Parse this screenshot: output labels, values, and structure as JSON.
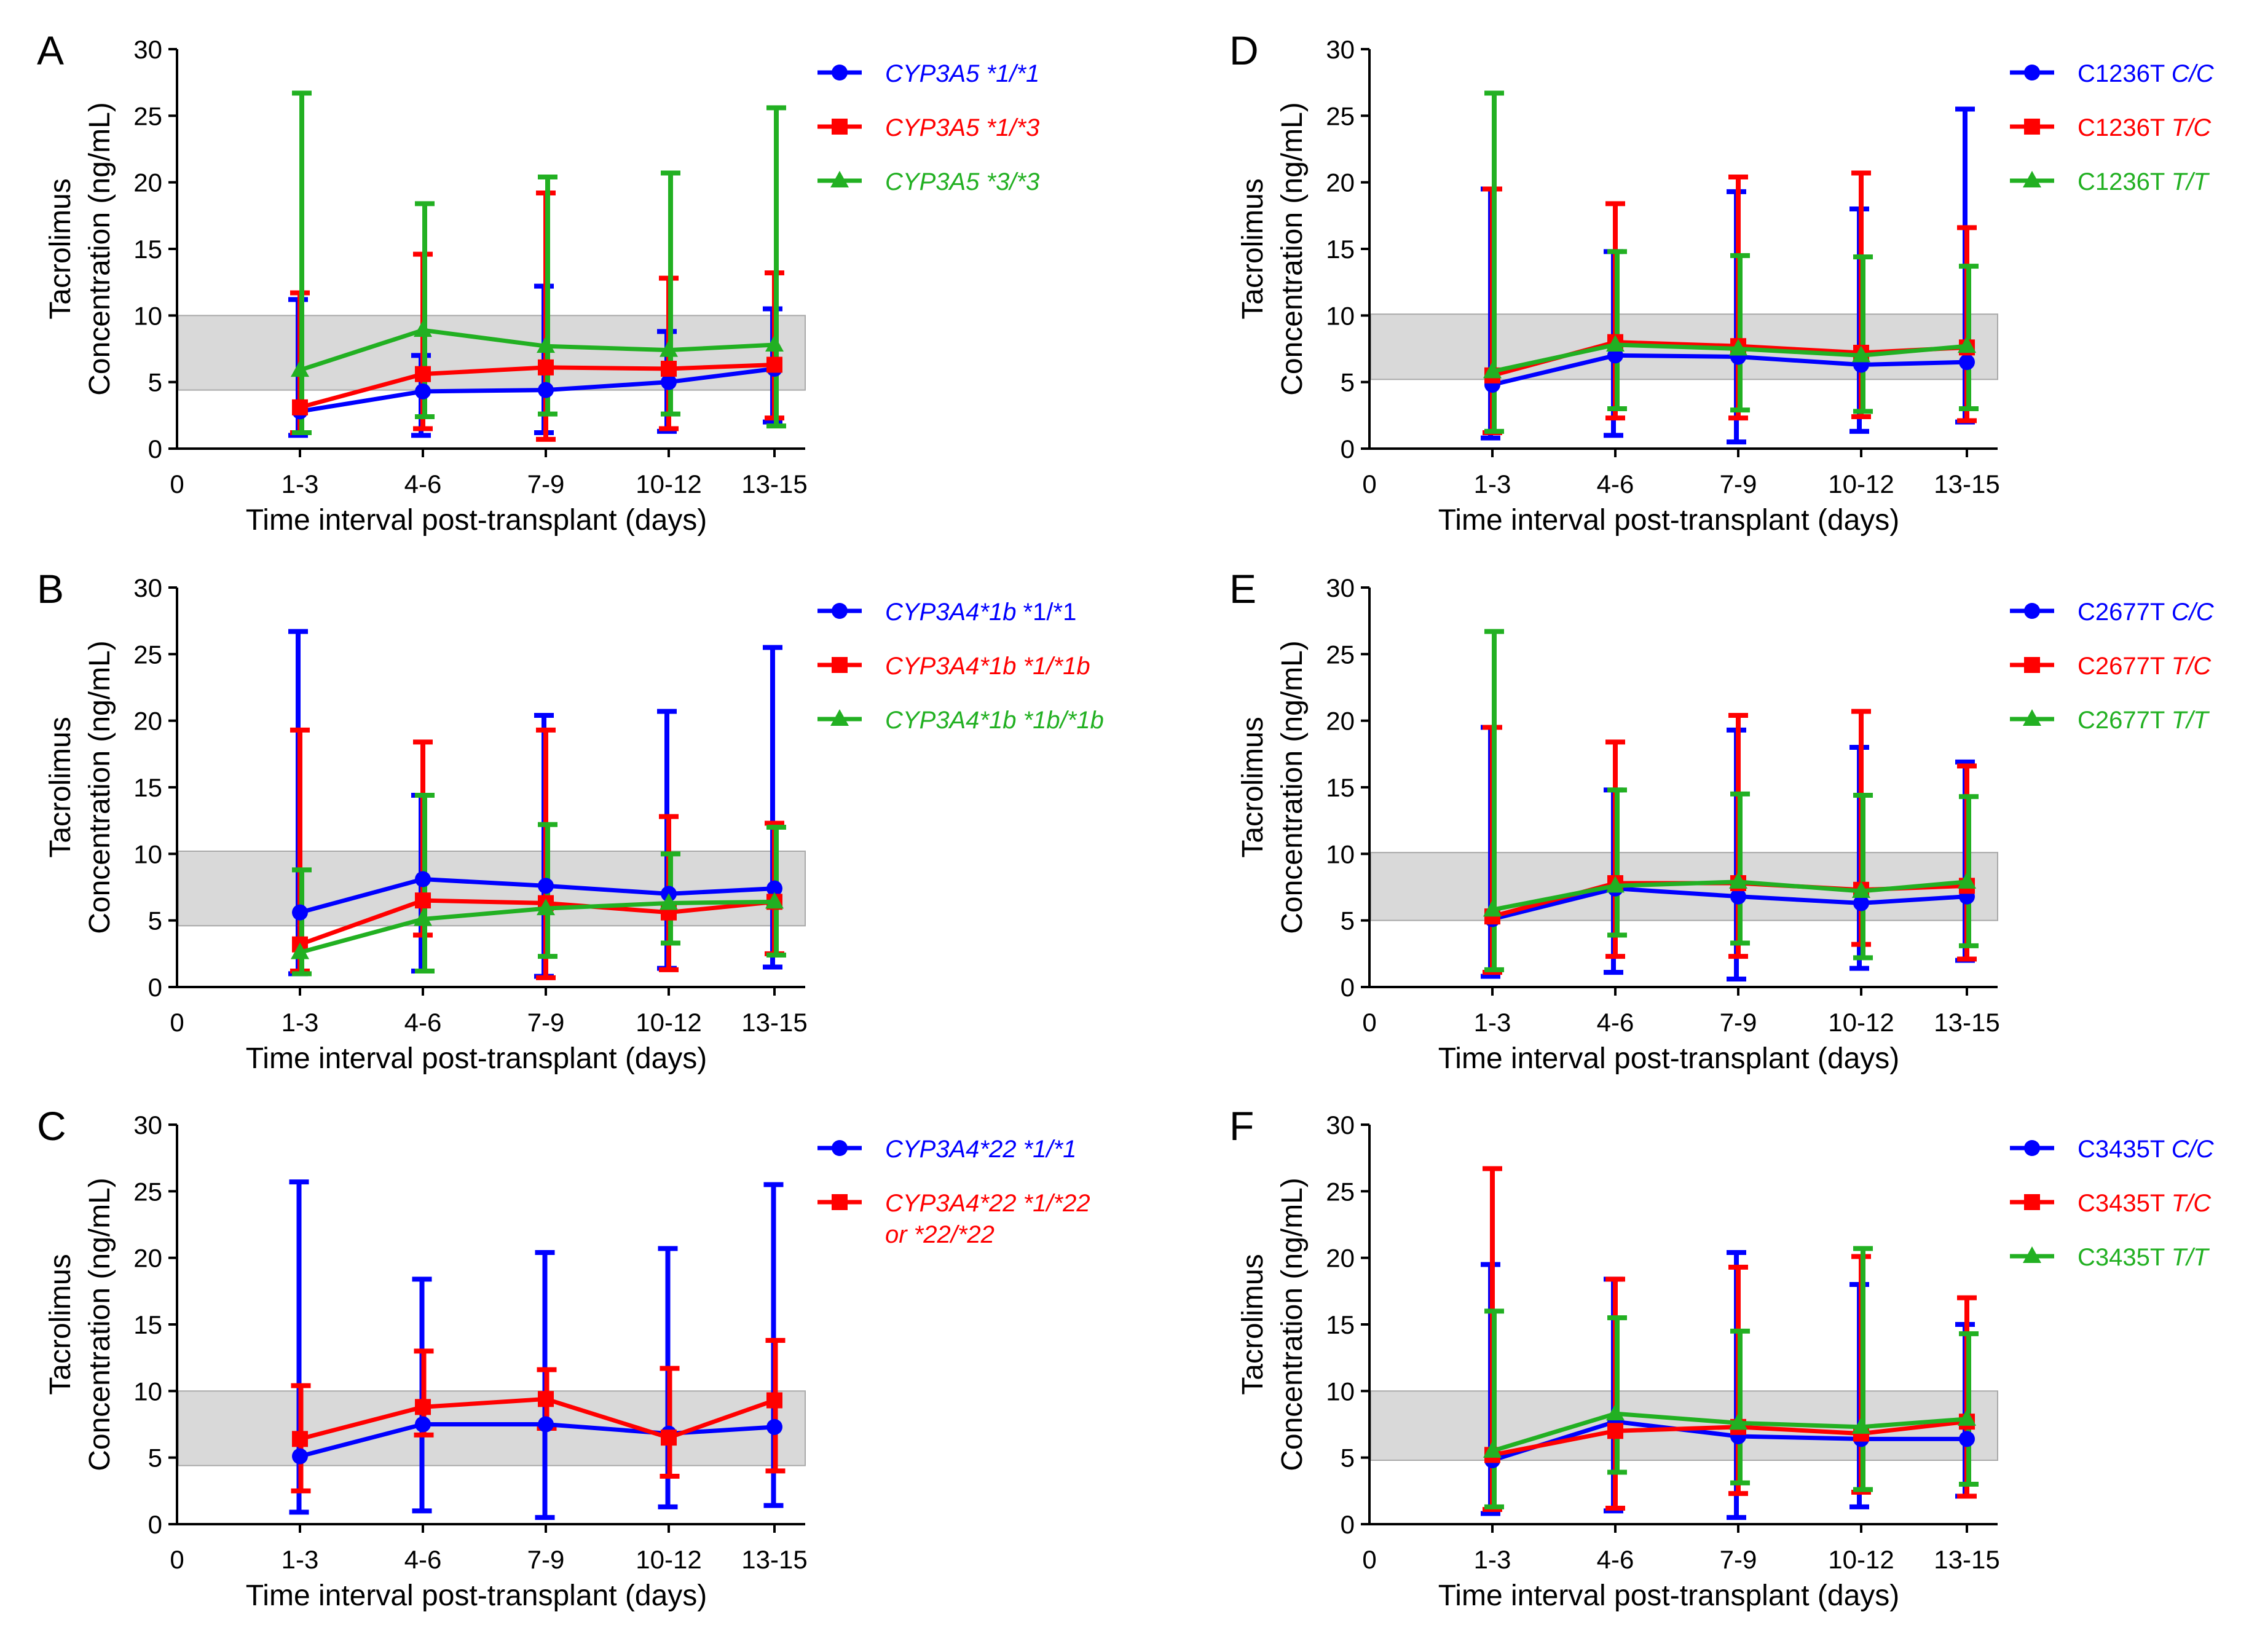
{
  "chart_data": [
    {
      "type": "line",
      "panel": "A",
      "xlabel": "Time interval post-transplant (days)",
      "ylabel_line1": "Tacrolimus",
      "ylabel_line2": "Concentration (ng/mL)",
      "x_zero_label": "0",
      "categories": [
        "1-3",
        "4-6",
        "7-9",
        "10-12",
        "13-15"
      ],
      "ylim": [
        0,
        30
      ],
      "yticks": [
        0,
        5,
        10,
        15,
        20,
        25,
        30
      ],
      "band": [
        4.4,
        10
      ],
      "series": [
        {
          "name": "CYP3A5 *1/*1",
          "color": "#0000ff",
          "marker": "circle",
          "legend": [
            {
              "text": "CYP3A5 *1/*1",
              "italic": true
            }
          ],
          "values": [
            2.8,
            4.3,
            4.4,
            5.0,
            6.0
          ],
          "err_low": [
            1.0,
            1.0,
            1.2,
            1.3,
            2.0
          ],
          "err_high": [
            11.2,
            7.0,
            12.2,
            8.8,
            10.5
          ]
        },
        {
          "name": "CYP3A5 *1/*3",
          "color": "#ff0000",
          "marker": "square",
          "legend": [
            {
              "text": "CYP3A5 *1/*3",
              "italic": true
            }
          ],
          "values": [
            3.1,
            5.6,
            6.1,
            6.0,
            6.3
          ],
          "err_low": [
            1.2,
            1.5,
            0.7,
            1.5,
            2.3
          ],
          "err_high": [
            11.7,
            14.6,
            19.2,
            12.8,
            13.2
          ]
        },
        {
          "name": "CYP3A5 *3/*3",
          "color": "#22b022",
          "marker": "triangle",
          "legend": [
            {
              "text": "CYP3A5 *3/*3",
              "italic": true
            }
          ],
          "values": [
            5.9,
            8.9,
            7.7,
            7.4,
            7.8
          ],
          "err_low": [
            1.2,
            2.4,
            2.6,
            2.6,
            1.7
          ],
          "err_high": [
            26.7,
            18.4,
            20.4,
            20.7,
            25.6
          ]
        }
      ]
    },
    {
      "type": "line",
      "panel": "B",
      "xlabel": "Time interval post-transplant (days)",
      "ylabel_line1": "Tacrolimus",
      "ylabel_line2": "Concentration (ng/mL)",
      "x_zero_label": "0",
      "categories": [
        "1-3",
        "4-6",
        "7-9",
        "10-12",
        "13-15"
      ],
      "ylim": [
        0,
        30
      ],
      "yticks": [
        0,
        5,
        10,
        15,
        20,
        25,
        30
      ],
      "band": [
        4.6,
        10.2
      ],
      "series": [
        {
          "name": "CYP3A4*1b *1/*1",
          "color": "#0000ff",
          "marker": "circle",
          "legend": [
            {
              "text": "CYP3A4*1b",
              "italic": true
            },
            {
              "text": " *1/*1",
              "italic": false
            }
          ],
          "values": [
            5.6,
            8.1,
            7.6,
            7.0,
            7.4
          ],
          "err_low": [
            1.0,
            1.2,
            0.8,
            1.4,
            1.5
          ],
          "err_high": [
            26.7,
            14.4,
            20.4,
            20.7,
            25.5
          ]
        },
        {
          "name": "CYP3A4*1b *1/*1b",
          "color": "#ff0000",
          "marker": "square",
          "legend": [
            {
              "text": "CYP3A4*1b *1/*1b",
              "italic": true
            }
          ],
          "values": [
            3.2,
            6.5,
            6.3,
            5.6,
            6.4
          ],
          "err_low": [
            1.2,
            3.9,
            0.7,
            1.3,
            2.5
          ],
          "err_high": [
            19.3,
            18.4,
            19.3,
            12.8,
            12.3
          ]
        },
        {
          "name": "CYP3A4*1b *1b/*1b",
          "color": "#22b022",
          "marker": "triangle",
          "legend": [
            {
              "text": "CYP3A4*1b *1b/*1b",
              "italic": true
            }
          ],
          "values": [
            2.6,
            5.1,
            5.9,
            6.3,
            6.4
          ],
          "err_low": [
            1.0,
            1.2,
            2.3,
            3.3,
            2.4
          ],
          "err_high": [
            8.8,
            14.4,
            12.2,
            10.0,
            12.0
          ]
        }
      ]
    },
    {
      "type": "line",
      "panel": "C",
      "xlabel": "Time interval post-transplant (days)",
      "ylabel_line1": "Tacrolimus",
      "ylabel_line2": "Concentration (ng/mL)",
      "x_zero_label": "0",
      "categories": [
        "1-3",
        "4-6",
        "7-9",
        "10-12",
        "13-15"
      ],
      "ylim": [
        0,
        30
      ],
      "yticks": [
        0,
        5,
        10,
        15,
        20,
        25,
        30
      ],
      "band": [
        4.4,
        10
      ],
      "series": [
        {
          "name": "CYP3A4*22 *1/*1",
          "color": "#0000ff",
          "marker": "circle",
          "legend": [
            {
              "text": "CYP3A4*22 *1/*1",
              "italic": true
            }
          ],
          "values": [
            5.1,
            7.5,
            7.5,
            6.8,
            7.3
          ],
          "err_low": [
            0.9,
            1.0,
            0.5,
            1.3,
            1.4
          ],
          "err_high": [
            25.7,
            18.4,
            20.4,
            20.7,
            25.5
          ]
        },
        {
          "name": "CYP3A4*22 *1/*22 or *22/*22",
          "color": "#ff0000",
          "marker": "square",
          "legend": [
            {
              "text": "CYP3A4*22 *1/*22",
              "italic": true
            }
          ],
          "legend_line2": "or *22/*22",
          "values": [
            6.4,
            8.8,
            9.4,
            6.5,
            9.3
          ],
          "err_low": [
            2.5,
            6.7,
            7.2,
            3.6,
            4.0
          ],
          "err_high": [
            10.4,
            13.0,
            11.6,
            11.7,
            13.8
          ]
        }
      ]
    },
    {
      "type": "line",
      "panel": "D",
      "xlabel": "Time interval post-transplant (days)",
      "ylabel_line1": "Tacrolimus",
      "ylabel_line2": "Concentration (ng/mL)",
      "x_zero_label": "0",
      "categories": [
        "1-3",
        "4-6",
        "7-9",
        "10-12",
        "13-15"
      ],
      "ylim": [
        0,
        30
      ],
      "yticks": [
        0,
        5,
        10,
        15,
        20,
        25,
        30
      ],
      "band": [
        5.2,
        10.1
      ],
      "series": [
        {
          "name": "C1236T C/C",
          "color": "#0000ff",
          "marker": "circle",
          "legend": [
            {
              "text": "C1236T ",
              "italic": false
            },
            {
              "text": "C/C",
              "italic": true
            }
          ],
          "values": [
            4.8,
            7.0,
            6.9,
            6.3,
            6.5
          ],
          "err_low": [
            0.8,
            1.0,
            0.5,
            1.3,
            2.0
          ],
          "err_high": [
            19.5,
            14.8,
            19.3,
            18.0,
            25.5
          ]
        },
        {
          "name": "C1236T T/C",
          "color": "#ff0000",
          "marker": "square",
          "legend": [
            {
              "text": "C1236T ",
              "italic": false
            },
            {
              "text": "T/C",
              "italic": true
            }
          ],
          "values": [
            5.5,
            8.0,
            7.7,
            7.2,
            7.6
          ],
          "err_low": [
            1.2,
            2.3,
            2.3,
            2.4,
            2.1
          ],
          "err_high": [
            19.5,
            18.4,
            20.4,
            20.7,
            16.6
          ]
        },
        {
          "name": "C1236T T/T",
          "color": "#22b022",
          "marker": "triangle",
          "legend": [
            {
              "text": "C1236T ",
              "italic": false
            },
            {
              "text": "T/T",
              "italic": true
            }
          ],
          "values": [
            5.8,
            7.8,
            7.5,
            7.0,
            7.7
          ],
          "err_low": [
            1.3,
            3.0,
            2.9,
            2.8,
            3.0
          ],
          "err_high": [
            26.7,
            14.8,
            14.5,
            14.4,
            13.7
          ]
        }
      ]
    },
    {
      "type": "line",
      "panel": "E",
      "xlabel": "Time interval post-transplant (days)",
      "ylabel_line1": "Tacrolimus",
      "ylabel_line2": "Concentration (ng/mL)",
      "x_zero_label": "0",
      "categories": [
        "1-3",
        "4-6",
        "7-9",
        "10-12",
        "13-15"
      ],
      "ylim": [
        0,
        30
      ],
      "yticks": [
        0,
        5,
        10,
        15,
        20,
        25,
        30
      ],
      "band": [
        5.0,
        10.1
      ],
      "series": [
        {
          "name": "C2677T C/C",
          "color": "#0000ff",
          "marker": "circle",
          "legend": [
            {
              "text": "C2677T ",
              "italic": false
            },
            {
              "text": "C/C",
              "italic": true
            }
          ],
          "values": [
            5.1,
            7.4,
            6.8,
            6.3,
            6.8
          ],
          "err_low": [
            0.8,
            1.1,
            0.6,
            1.4,
            2.0
          ],
          "err_high": [
            19.5,
            14.8,
            19.3,
            18.0,
            16.9
          ]
        },
        {
          "name": "C2677T T/C",
          "color": "#ff0000",
          "marker": "square",
          "legend": [
            {
              "text": "C2677T ",
              "italic": false
            },
            {
              "text": "T/C",
              "italic": true
            }
          ],
          "values": [
            5.3,
            7.8,
            7.8,
            7.3,
            7.6
          ],
          "err_low": [
            1.1,
            2.3,
            2.3,
            3.2,
            2.1
          ],
          "err_high": [
            19.5,
            18.4,
            20.4,
            20.7,
            16.6
          ]
        },
        {
          "name": "C2677T T/T",
          "color": "#22b022",
          "marker": "triangle",
          "legend": [
            {
              "text": "C2677T ",
              "italic": false
            },
            {
              "text": "T/T",
              "italic": true
            }
          ],
          "values": [
            5.8,
            7.6,
            7.9,
            7.2,
            7.9
          ],
          "err_low": [
            1.3,
            3.9,
            3.3,
            2.2,
            3.1
          ],
          "err_high": [
            26.7,
            14.8,
            14.5,
            14.4,
            14.3
          ]
        }
      ]
    },
    {
      "type": "line",
      "panel": "F",
      "xlabel": "Time interval post-transplant (days)",
      "ylabel_line1": "Tacrolimus",
      "ylabel_line2": "Concentration (ng/mL)",
      "x_zero_label": "0",
      "categories": [
        "1-3",
        "4-6",
        "7-9",
        "10-12",
        "13-15"
      ],
      "ylim": [
        0,
        30
      ],
      "yticks": [
        0,
        5,
        10,
        15,
        20,
        25,
        30
      ],
      "band": [
        4.8,
        10.0
      ],
      "series": [
        {
          "name": "C3435T C/C",
          "color": "#0000ff",
          "marker": "circle",
          "legend": [
            {
              "text": "C3435T ",
              "italic": false
            },
            {
              "text": "C/C",
              "italic": true
            }
          ],
          "values": [
            4.8,
            7.7,
            6.6,
            6.4,
            6.4
          ],
          "err_low": [
            0.8,
            1.0,
            0.5,
            1.3,
            2.1
          ],
          "err_high": [
            19.5,
            18.4,
            20.4,
            18.0,
            15.0
          ]
        },
        {
          "name": "C3435T T/C",
          "color": "#ff0000",
          "marker": "square",
          "legend": [
            {
              "text": "C3435T ",
              "italic": false
            },
            {
              "text": "T/C",
              "italic": true
            }
          ],
          "values": [
            5.2,
            7.0,
            7.3,
            6.8,
            7.7
          ],
          "err_low": [
            1.1,
            1.2,
            2.3,
            2.4,
            2.1
          ],
          "err_high": [
            26.7,
            18.4,
            19.3,
            20.1,
            17.0
          ]
        },
        {
          "name": "C3435T T/T",
          "color": "#22b022",
          "marker": "triangle",
          "legend": [
            {
              "text": "C3435T ",
              "italic": false
            },
            {
              "text": "T/T",
              "italic": true
            }
          ],
          "values": [
            5.5,
            8.3,
            7.6,
            7.3,
            7.9
          ],
          "err_low": [
            1.3,
            3.9,
            3.1,
            2.6,
            3.0
          ],
          "err_high": [
            16.0,
            15.5,
            14.5,
            20.7,
            14.3
          ]
        }
      ]
    }
  ]
}
